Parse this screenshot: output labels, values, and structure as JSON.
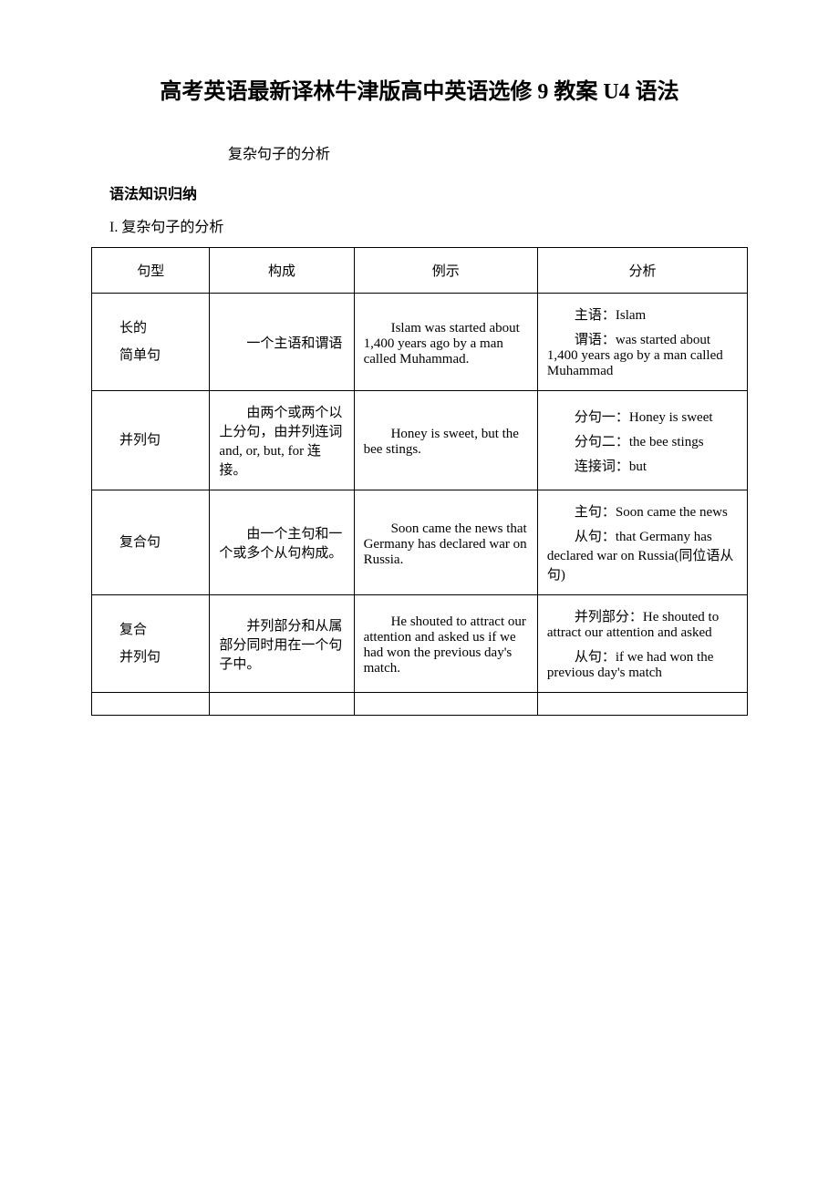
{
  "title": "高考英语最新译林牛津版高中英语选修 9 教案 U4 语法",
  "subtitle": "复杂句子的分析",
  "sectionHeading": "语法知识归纳",
  "sectionSub": "I. 复杂句子的分析",
  "headers": {
    "col1": "句型",
    "col2": "构成",
    "col3": "例示",
    "col4": "分析"
  },
  "rows": [
    {
      "type": "长的\n简单句",
      "structure": "　　一个主语和谓语",
      "example": "　　Islam was started about 1,400 years ago by a man called Muhammad.",
      "analysis": [
        "主语：Islam",
        "谓语：was started about 1,400 years ago by a man called Muhammad"
      ]
    },
    {
      "type": "并列句",
      "structure": "　　由两个或两个以上分句，由并列连词 and, or, but, for 连接。",
      "example": "　　Honey is sweet, but the bee stings.",
      "analysis": [
        "分句一：Honey is sweet",
        "分句二：the bee stings",
        "连接词：but"
      ]
    },
    {
      "type": "复合句",
      "structure": "　　由一个主句和一个或多个从句构成。",
      "example": "　　Soon came the news that Germany has declared war on Russia.",
      "analysis": [
        "主句：Soon came the news",
        "从句：that Germany has declared war on Russia(同位语从句)"
      ]
    },
    {
      "type": "复合\n并列句",
      "structure": "　　并列部分和从属部分同时用在一个句子中。",
      "example": "　　He shouted to attract our attention and asked us if we had won the previous day's match.",
      "analysis": [
        "并列部分：He shouted to attract our attention and asked",
        "从句：if we had won the previous day's match"
      ]
    }
  ]
}
